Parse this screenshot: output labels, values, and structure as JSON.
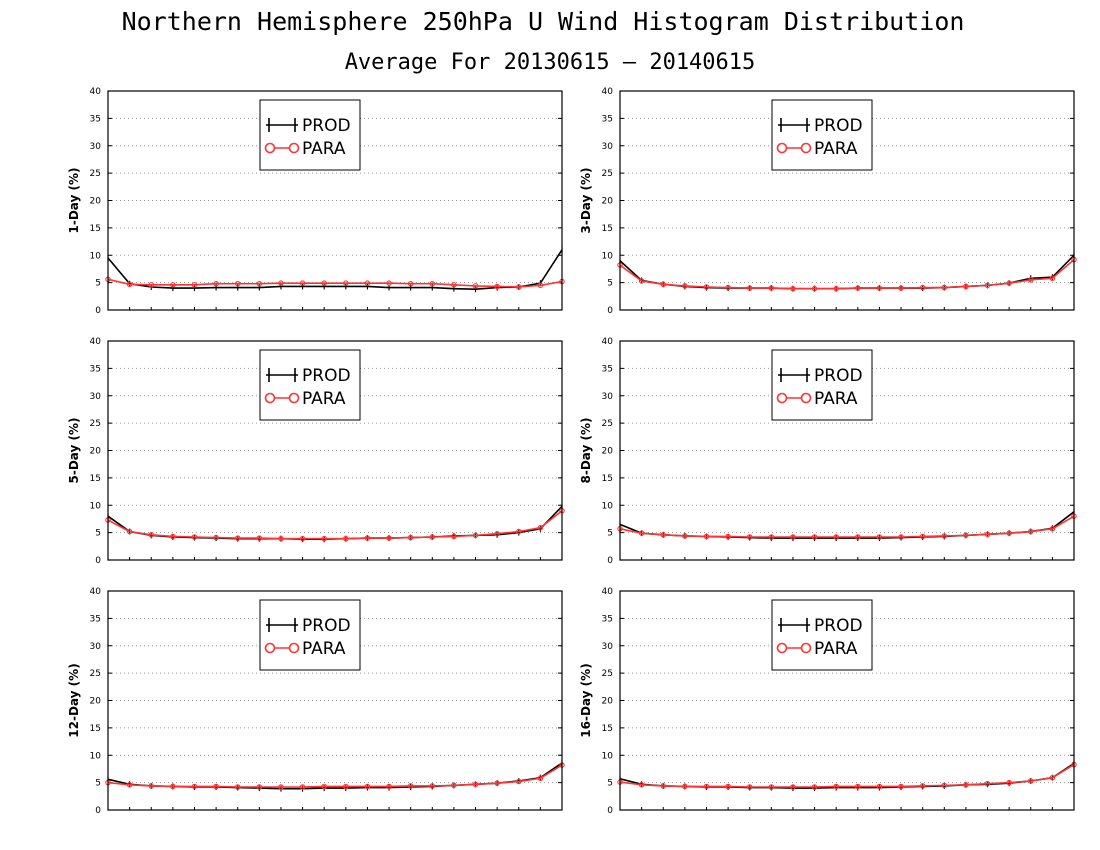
{
  "title": "Northern Hemisphere 250hPa U Wind Histogram Distribution",
  "subtitle": "Average For 20130615 – 20140615",
  "colors": {
    "prod": "#000000",
    "para": "#ff3333",
    "grid": "#999999"
  },
  "legend": {
    "prod_label": "PROD",
    "para_label": "PARA",
    "placement": "upper-center"
  },
  "chart_data": [
    {
      "type": "line",
      "ylabel": "1-Day (%)",
      "ylim": [
        0,
        40
      ],
      "yticks": [
        0,
        5,
        10,
        15,
        20,
        25,
        30,
        35,
        40
      ],
      "grid": "horizontal-dotted",
      "series": [
        {
          "name": "PROD",
          "values": [
            9.5,
            4.8,
            4.2,
            4.0,
            4.0,
            4.1,
            4.1,
            4.1,
            4.3,
            4.3,
            4.3,
            4.3,
            4.3,
            4.1,
            4.1,
            4.1,
            3.9,
            3.8,
            4.1,
            4.2,
            4.9,
            11.0
          ]
        },
        {
          "name": "PARA",
          "values": [
            5.6,
            4.7,
            4.6,
            4.6,
            4.6,
            4.8,
            4.8,
            4.8,
            4.9,
            4.9,
            4.9,
            4.9,
            4.9,
            4.9,
            4.8,
            4.8,
            4.6,
            4.4,
            4.3,
            4.2,
            4.5,
            5.2
          ]
        }
      ]
    },
    {
      "type": "line",
      "ylabel": "3-Day (%)",
      "ylim": [
        0,
        40
      ],
      "yticks": [
        0,
        5,
        10,
        15,
        20,
        25,
        30,
        35,
        40
      ],
      "grid": "horizontal-dotted",
      "series": [
        {
          "name": "PROD",
          "values": [
            9.0,
            5.4,
            4.7,
            4.3,
            4.1,
            4.0,
            4.0,
            4.0,
            3.9,
            3.9,
            3.9,
            4.0,
            4.0,
            4.0,
            4.0,
            4.1,
            4.3,
            4.5,
            4.9,
            5.8,
            6.0,
            10.0
          ]
        },
        {
          "name": "PARA",
          "values": [
            8.2,
            5.3,
            4.7,
            4.4,
            4.2,
            4.1,
            4.0,
            4.0,
            3.9,
            3.9,
            3.9,
            4.0,
            4.0,
            4.0,
            4.1,
            4.1,
            4.3,
            4.5,
            4.9,
            5.5,
            5.8,
            9.2
          ]
        }
      ]
    },
    {
      "type": "line",
      "ylabel": "5-Day (%)",
      "ylim": [
        0,
        40
      ],
      "yticks": [
        0,
        5,
        10,
        15,
        20,
        25,
        30,
        35,
        40
      ],
      "grid": "horizontal-dotted",
      "series": [
        {
          "name": "PROD",
          "values": [
            8.0,
            5.2,
            4.5,
            4.2,
            4.1,
            4.0,
            3.9,
            3.9,
            3.9,
            3.8,
            3.8,
            3.9,
            4.0,
            4.0,
            4.1,
            4.2,
            4.4,
            4.5,
            4.6,
            5.0,
            5.7,
            9.8
          ]
        },
        {
          "name": "PARA",
          "values": [
            7.3,
            5.2,
            4.6,
            4.3,
            4.2,
            4.1,
            4.0,
            4.0,
            3.9,
            3.9,
            3.9,
            3.9,
            4.0,
            4.0,
            4.1,
            4.2,
            4.3,
            4.5,
            4.8,
            5.2,
            5.9,
            9.0
          ]
        }
      ]
    },
    {
      "type": "line",
      "ylabel": "8-Day (%)",
      "ylim": [
        0,
        40
      ],
      "yticks": [
        0,
        5,
        10,
        15,
        20,
        25,
        30,
        35,
        40
      ],
      "grid": "horizontal-dotted",
      "series": [
        {
          "name": "PROD",
          "values": [
            6.5,
            4.9,
            4.6,
            4.4,
            4.3,
            4.2,
            4.1,
            4.0,
            4.0,
            4.0,
            4.0,
            4.0,
            4.0,
            4.1,
            4.2,
            4.3,
            4.5,
            4.7,
            4.9,
            5.2,
            5.8,
            8.8
          ]
        },
        {
          "name": "PARA",
          "values": [
            5.7,
            4.9,
            4.6,
            4.4,
            4.3,
            4.3,
            4.2,
            4.2,
            4.2,
            4.2,
            4.2,
            4.2,
            4.2,
            4.2,
            4.3,
            4.4,
            4.5,
            4.7,
            4.9,
            5.2,
            5.7,
            8.0
          ]
        }
      ]
    },
    {
      "type": "line",
      "ylabel": "12-Day (%)",
      "ylim": [
        0,
        40
      ],
      "yticks": [
        0,
        5,
        10,
        15,
        20,
        25,
        30,
        35,
        40
      ],
      "grid": "horizontal-dotted",
      "series": [
        {
          "name": "PROD",
          "values": [
            5.6,
            4.7,
            4.4,
            4.3,
            4.2,
            4.2,
            4.1,
            4.0,
            3.9,
            3.9,
            4.0,
            4.0,
            4.1,
            4.1,
            4.2,
            4.3,
            4.5,
            4.7,
            4.9,
            5.3,
            5.9,
            8.6
          ]
        },
        {
          "name": "PARA",
          "values": [
            5.0,
            4.6,
            4.4,
            4.3,
            4.3,
            4.3,
            4.2,
            4.2,
            4.2,
            4.2,
            4.3,
            4.3,
            4.3,
            4.3,
            4.4,
            4.4,
            4.5,
            4.7,
            4.9,
            5.2,
            5.8,
            8.2
          ]
        }
      ]
    },
    {
      "type": "line",
      "ylabel": "16-Day (%)",
      "ylim": [
        0,
        40
      ],
      "yticks": [
        0,
        5,
        10,
        15,
        20,
        25,
        30,
        35,
        40
      ],
      "grid": "horizontal-dotted",
      "series": [
        {
          "name": "PROD",
          "values": [
            5.7,
            4.7,
            4.4,
            4.3,
            4.2,
            4.2,
            4.1,
            4.1,
            4.0,
            4.0,
            4.1,
            4.1,
            4.1,
            4.2,
            4.3,
            4.4,
            4.6,
            4.7,
            4.9,
            5.3,
            5.9,
            8.5
          ]
        },
        {
          "name": "PARA",
          "values": [
            5.1,
            4.6,
            4.4,
            4.3,
            4.3,
            4.3,
            4.2,
            4.2,
            4.2,
            4.2,
            4.3,
            4.3,
            4.3,
            4.3,
            4.4,
            4.5,
            4.6,
            4.8,
            5.0,
            5.3,
            5.9,
            8.3
          ]
        }
      ]
    }
  ]
}
